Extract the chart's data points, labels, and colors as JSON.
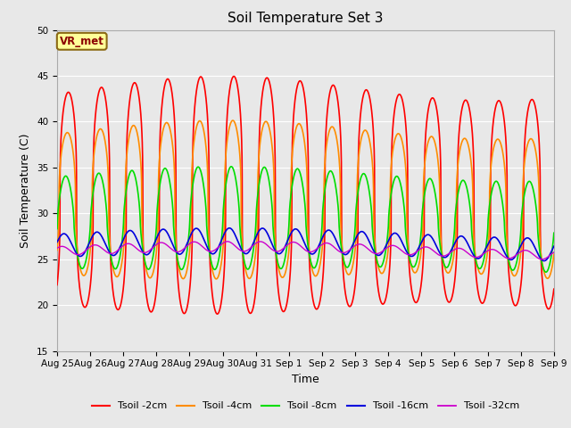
{
  "title": "Soil Temperature Set 3",
  "xlabel": "Time",
  "ylabel": "Soil Temperature (C)",
  "ylim": [
    15,
    50
  ],
  "yticks": [
    15,
    20,
    25,
    30,
    35,
    40,
    45,
    50
  ],
  "fig_facecolor": "#e8e8e8",
  "plot_bg_color": "#e8e8e8",
  "annotation_text": "VR_met",
  "annotation_box_color": "#ffff99",
  "annotation_border_color": "#8b6914",
  "series": [
    {
      "name": "Tsoil -2cm",
      "color": "#ff0000",
      "lw": 1.2,
      "mean": 31.5,
      "amp": 12.0,
      "phase": -0.55,
      "sharpness": 3.0
    },
    {
      "name": "Tsoil -4cm",
      "color": "#ff8c00",
      "lw": 1.2,
      "mean": 31.0,
      "amp": 8.0,
      "phase": -0.35,
      "sharpness": 2.5
    },
    {
      "name": "Tsoil -8cm",
      "color": "#00dd00",
      "lw": 1.2,
      "mean": 29.0,
      "amp": 5.2,
      "phase": -0.05,
      "sharpness": 1.5
    },
    {
      "name": "Tsoil -16cm",
      "color": "#0000dd",
      "lw": 1.2,
      "mean": 26.5,
      "amp": 1.3,
      "phase": 0.3,
      "sharpness": 1.0
    },
    {
      "name": "Tsoil -32cm",
      "color": "#cc00cc",
      "lw": 1.0,
      "mean": 25.9,
      "amp": 0.5,
      "phase": 0.7,
      "sharpness": 1.0
    }
  ],
  "xtick_labels": [
    "Aug 25",
    "Aug 26",
    "Aug 27",
    "Aug 28",
    "Aug 29",
    "Aug 30",
    "Aug 31",
    "Sep 1",
    "Sep 2",
    "Sep 3",
    "Sep 4",
    "Sep 5",
    "Sep 6",
    "Sep 7",
    "Sep 8",
    "Sep 9"
  ],
  "n_points": 3000
}
